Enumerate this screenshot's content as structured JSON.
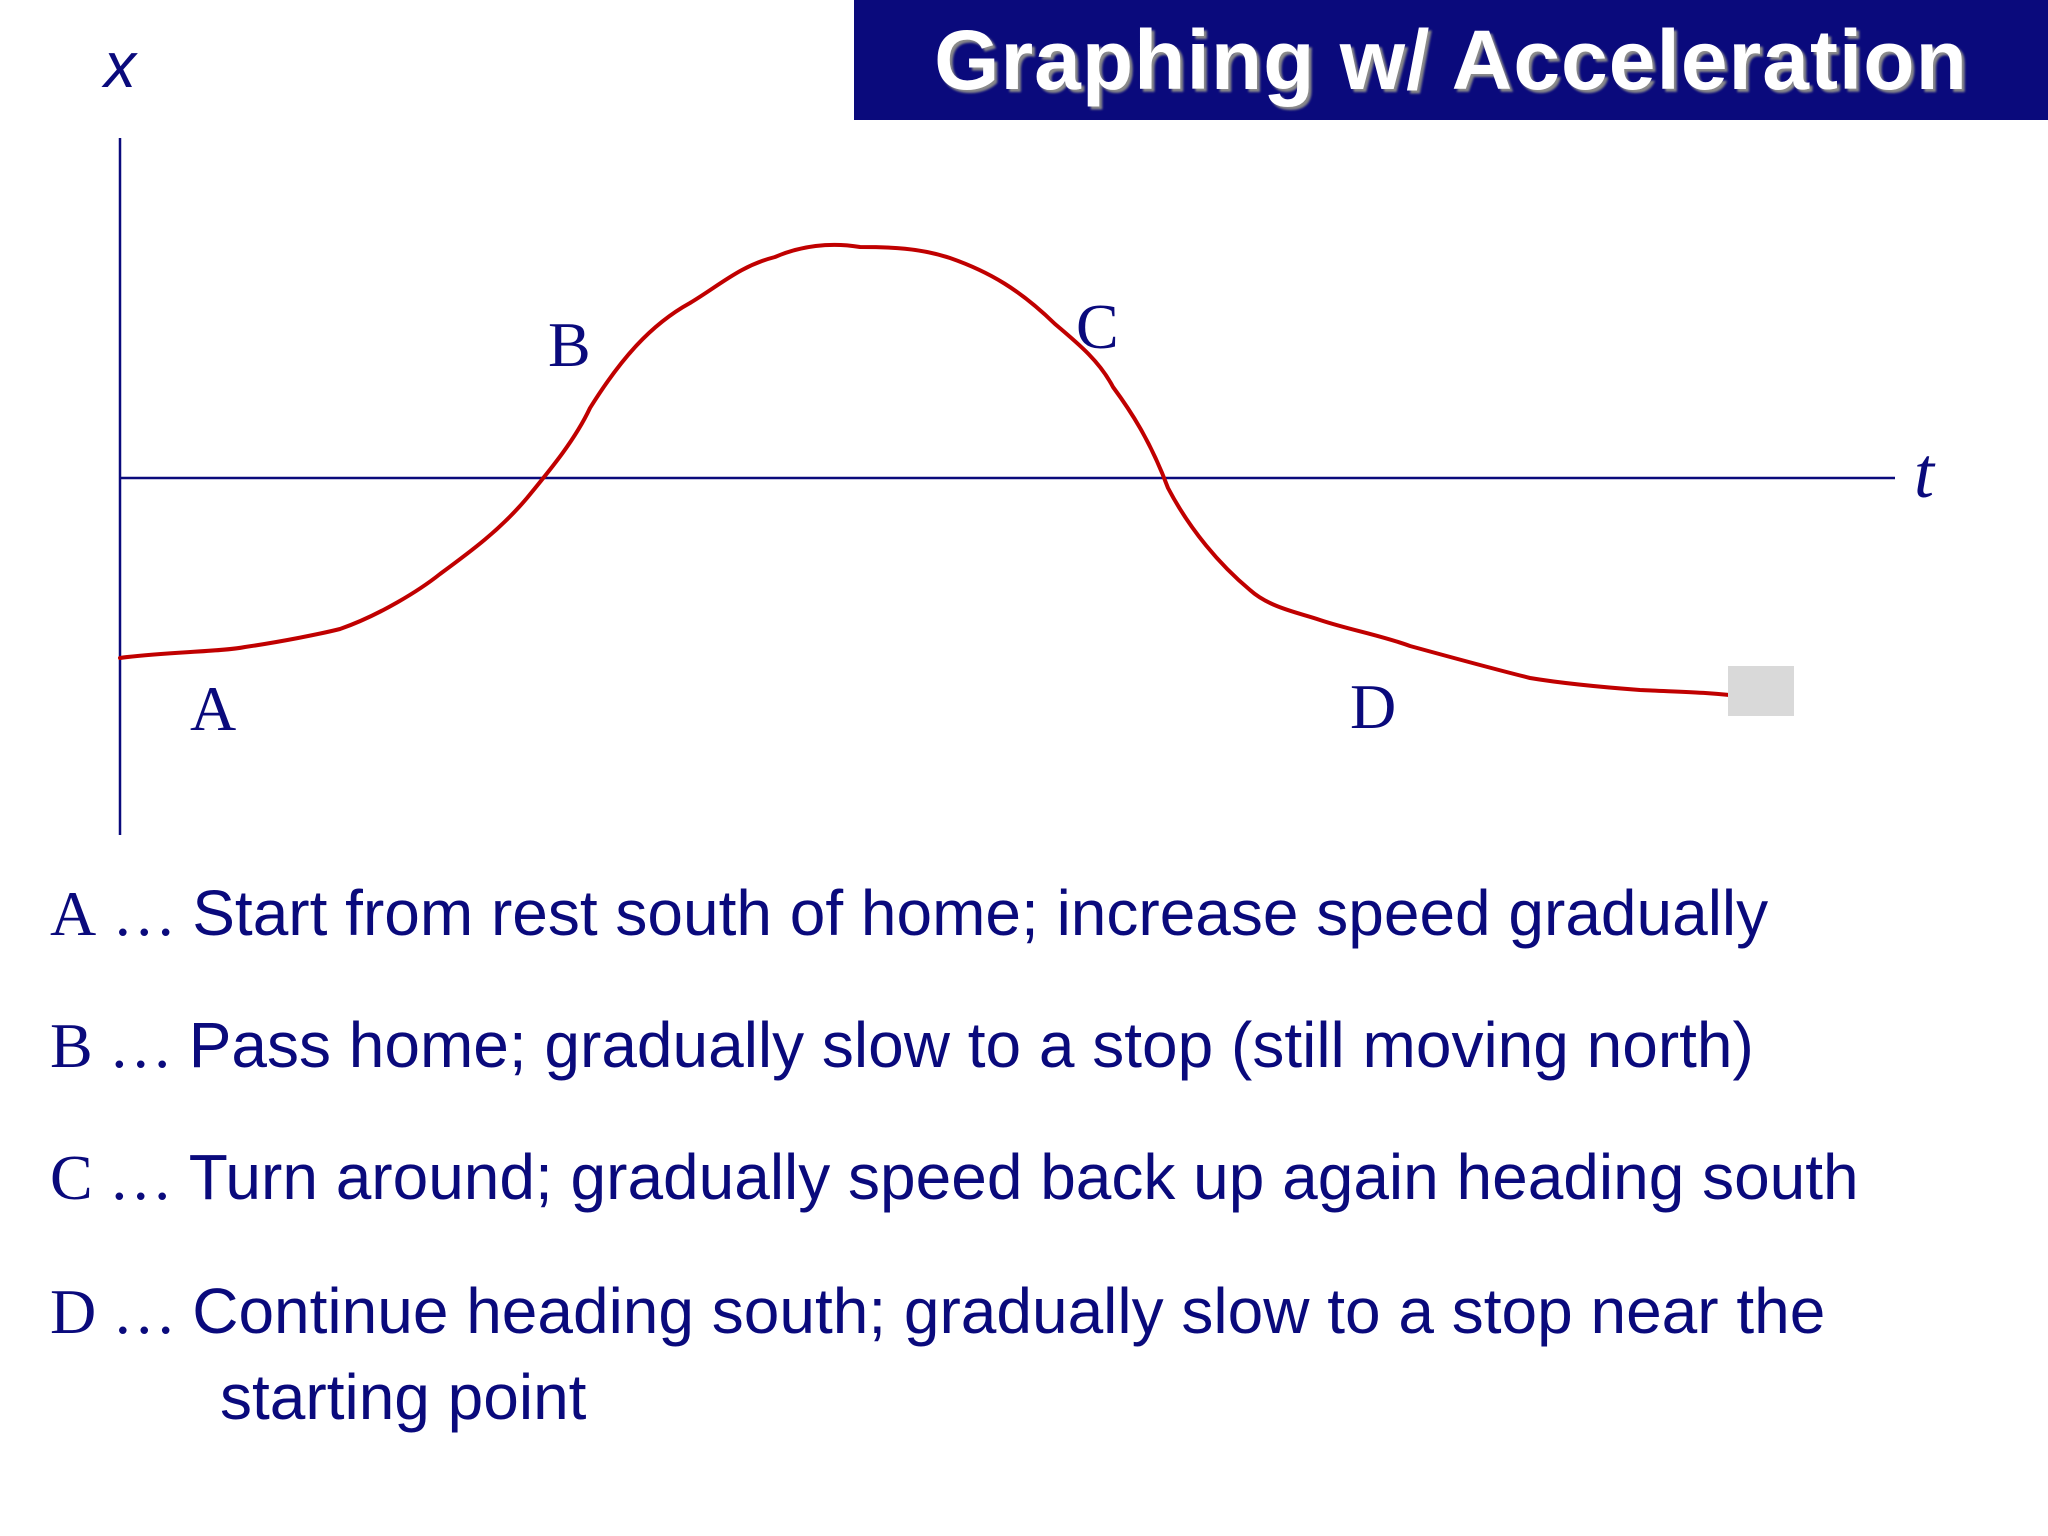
{
  "title": "Graphing w/ Acceleration",
  "axes": {
    "vertical_label": "x",
    "horizontal_label": "t"
  },
  "points": {
    "a": "A",
    "b": "B",
    "c": "C",
    "d": "D"
  },
  "colors": {
    "curve": "#c00000",
    "axis": "#0a0a7c",
    "title_bg": "#0a0a7c"
  },
  "descriptions": [
    {
      "key": "A",
      "text": "Start from rest south of home; increase speed gradually"
    },
    {
      "key": "B",
      "text": "Pass home; gradually slow to a stop (still moving north)"
    },
    {
      "key": "C",
      "text": "Turn around; gradually speed back up again heading south"
    },
    {
      "key": "D",
      "text": "Continue heading south; gradually slow to a stop near the",
      "continuation": "starting point"
    }
  ],
  "ellipsis": "…"
}
